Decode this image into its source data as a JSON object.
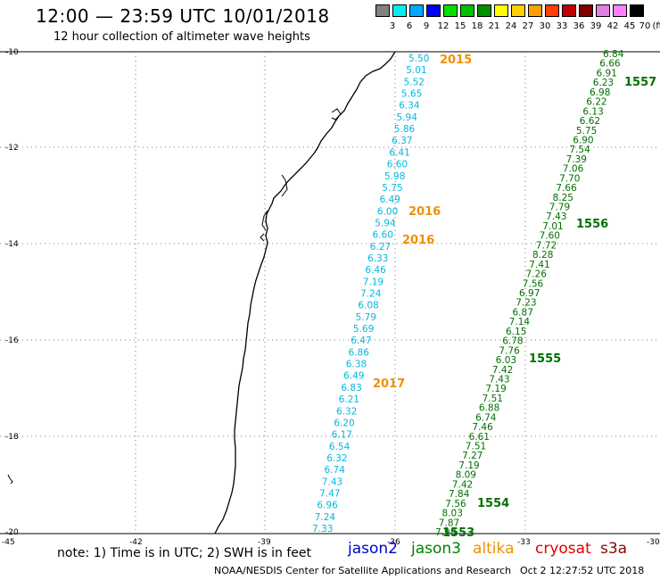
{
  "header": {
    "title": "12:00 — 23:59 UTC 10/01/2018",
    "subtitle": "12 hour collection of altimeter wave heights"
  },
  "colorbar": {
    "swatches": [
      "#808080",
      "#00f0f0",
      "#00a8ff",
      "#0000ff",
      "#00e000",
      "#00c000",
      "#009000",
      "#ffff00",
      "#ffd000",
      "#ffa000",
      "#ff4000",
      "#c00000",
      "#800000",
      "#e080e0",
      "#ff80ff",
      "#000000"
    ],
    "labels": [
      "3",
      "6",
      "9",
      "12",
      "15",
      "18",
      "21",
      "24",
      "27",
      "30",
      "33",
      "36",
      "39",
      "42",
      "45",
      "70"
    ],
    "unit": "(ft)"
  },
  "map": {
    "lat_labels": [
      "-10",
      "-12",
      "-14",
      "-16",
      "-18",
      "-20"
    ],
    "lon_labels": [
      "-45",
      "-42",
      "-39",
      "-36",
      "-33",
      "-30"
    ]
  },
  "tracks": {
    "cyan_color": "#00b8e0",
    "green_color": "#007000",
    "orange_color": "#f09000",
    "cyan_values": [
      "5.50",
      "5.01",
      "5.52",
      "5.65",
      "6.34",
      "5.94",
      "5.86",
      "6.37",
      "6.41",
      "6.60",
      "5.98",
      "5.75",
      "6.49",
      "6.00",
      "5.94",
      "6.60",
      "6.27",
      "6.33",
      "6.46",
      "7.19",
      "7.24",
      "6.08",
      "5.79",
      "5.69",
      "6.47",
      "6.86",
      "6.38",
      "6.49",
      "6.83",
      "6.21",
      "6.32",
      "6.20",
      "6.17",
      "6.54",
      "6.32",
      "6.74",
      "7.43",
      "7.47",
      "6.96",
      "7.24",
      "7.33"
    ],
    "green_values": [
      "6.84",
      "6.66",
      "6.91",
      "6.23",
      "6.98",
      "6.22",
      "6.13",
      "6.62",
      "5.75",
      "6.90",
      "7.54",
      "7.39",
      "7.06",
      "7.70",
      "7.66",
      "8.25",
      "7.79",
      "7.43",
      "7.01",
      "7.60",
      "7.72",
      "8.28",
      "7.41",
      "7.26",
      "7.56",
      "6.97",
      "7.23",
      "6.87",
      "7.14",
      "6.15",
      "6.78",
      "7.76",
      "6.03",
      "7.42",
      "7.43",
      "7.19",
      "7.51",
      "6.88",
      "6.74",
      "7.46",
      "6.61",
      "7.51",
      "7.27",
      "7.19",
      "8.09",
      "7.42",
      "7.84",
      "7.56",
      "8.03",
      "7.87",
      "7.98"
    ],
    "orange_pass_ids": [
      "2015",
      "2016",
      "2016",
      "2017"
    ],
    "green_pass_ids": [
      "1557",
      "1556",
      "1555",
      "1554",
      "1553"
    ]
  },
  "legend": {
    "note": "note:  1) Time is in UTC;  2) SWH is in feet",
    "satellites": [
      {
        "name": "jason2",
        "color": "#0000d0"
      },
      {
        "name": "jason3",
        "color": "#008000"
      },
      {
        "name": "altika",
        "color": "#f09000"
      },
      {
        "name": "cryosat",
        "color": "#e00000"
      },
      {
        "name": "s3a",
        "color": "#900000"
      }
    ]
  },
  "footer": {
    "credit": "NOAA/NESDIS Center for Satellite Applications and Research",
    "timestamp": "Oct  2 12:27:52 UTC 2018"
  }
}
